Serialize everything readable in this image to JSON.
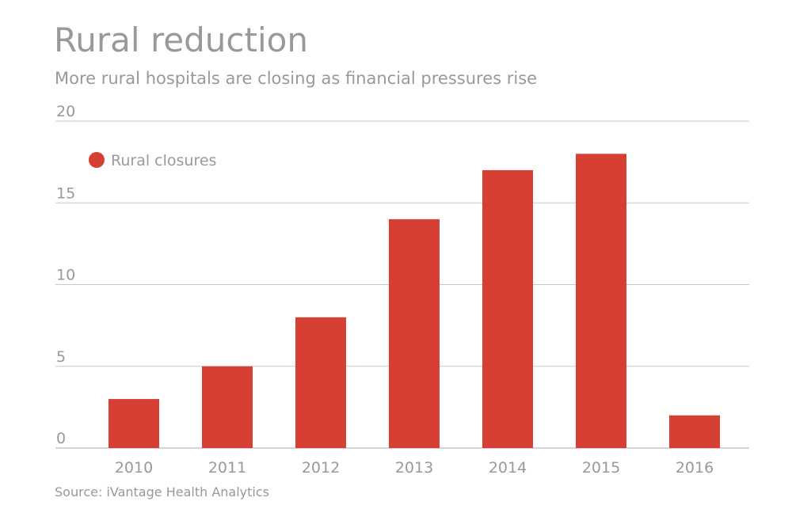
{
  "chart_data": {
    "type": "bar",
    "title": "Rural reduction",
    "subtitle": "More rural hospitals are closing as financial pressures rise",
    "source": "Source: iVantage Health Analytics",
    "categories": [
      "2010",
      "2011",
      "2012",
      "2013",
      "2014",
      "2015",
      "2016"
    ],
    "series": [
      {
        "name": "Rural closures",
        "values": [
          3,
          5,
          8,
          14,
          17,
          18,
          2
        ],
        "color": "#d63f33"
      }
    ],
    "yticks": [
      "0",
      "5",
      "10",
      "15",
      "20"
    ],
    "ylim": [
      0,
      20
    ],
    "grid": true,
    "legend_position": "top-left",
    "xlabel": "",
    "ylabel": ""
  }
}
